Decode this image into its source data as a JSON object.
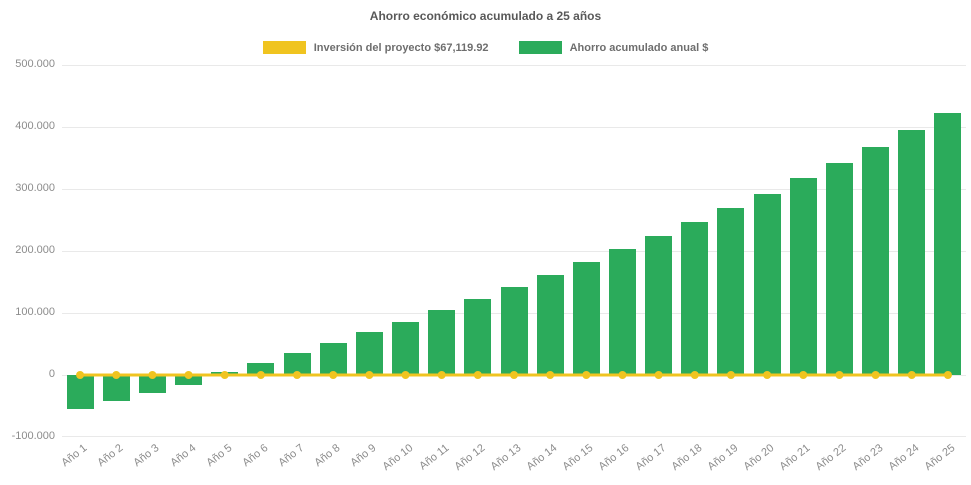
{
  "chart_data": {
    "type": "bar",
    "title": "Ahorro económico acumulado a 25 años",
    "legend_position": "top",
    "grid": true,
    "background": "#ffffff",
    "colors": {
      "title": "#595959",
      "legend_text": "#6e6e6e",
      "axis_labels": "#8c8c8c",
      "gridline": "#e9e9e9",
      "investment_line": "#f0c420",
      "savings_bar": "#2bab5b"
    },
    "categories": [
      "Año 1",
      "Año 2",
      "Año 3",
      "Año 4",
      "Año 5",
      "Año 6",
      "Año 7",
      "Año 8",
      "Año 9",
      "Año 10",
      "Año 11",
      "Año 12",
      "Año 13",
      "Año 14",
      "Año 15",
      "Año 16",
      "Año 17",
      "Año 18",
      "Año 19",
      "Año 20",
      "Año 21",
      "Año 22",
      "Año 23",
      "Año 24",
      "Año 25"
    ],
    "series": [
      {
        "name": "Inversión del proyecto $67,119.92",
        "type": "line",
        "color": "#f0c420",
        "values": [
          0,
          0,
          0,
          0,
          0,
          0,
          0,
          0,
          0,
          0,
          0,
          0,
          0,
          0,
          0,
          0,
          0,
          0,
          0,
          0,
          0,
          0,
          0,
          0,
          0
        ]
      },
      {
        "name": "Ahorro acumulado anual $",
        "type": "bar",
        "color": "#2bab5b",
        "values": [
          -54500,
          -41500,
          -29000,
          -15500,
          4300,
          19400,
          35500,
          51600,
          68900,
          85000,
          104800,
          122100,
          141900,
          161800,
          182300,
          202700,
          224200,
          246800,
          269400,
          292400,
          317700,
          341900,
          368200,
          395200,
          422100
        ]
      }
    ],
    "ylim": [
      -100000,
      500000
    ],
    "yticks": [
      {
        "label": "500.000",
        "value": 500000
      },
      {
        "label": "400.000",
        "value": 400000
      },
      {
        "label": "300.000",
        "value": 300000
      },
      {
        "label": "200.000",
        "value": 200000
      },
      {
        "label": "100.000",
        "value": 100000
      },
      {
        "label": "0",
        "value": 0
      },
      {
        "label": "-100.000",
        "value": -100000
      }
    ]
  }
}
